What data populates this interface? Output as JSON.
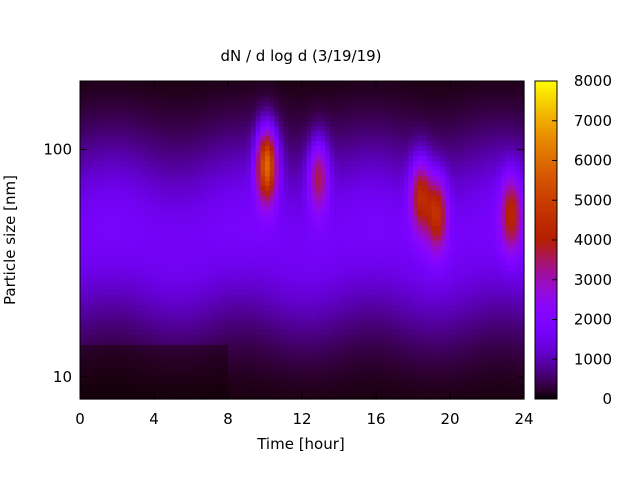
{
  "chart_data": {
    "type": "heatmap",
    "title": "dN / d log d (3/19/19)",
    "xlabel": "Time [hour]",
    "ylabel": "Particle size [nm]",
    "xlim": [
      0,
      24
    ],
    "ylim": [
      8,
      200
    ],
    "y_scale": "log",
    "x_ticks": [
      0,
      4,
      8,
      12,
      16,
      20,
      24
    ],
    "y_ticks": [
      10,
      100
    ],
    "colorbar": {
      "range": [
        0,
        8000
      ],
      "ticks": [
        0,
        1000,
        2000,
        3000,
        4000,
        5000,
        6000,
        7000,
        8000
      ],
      "colormap": "gnuplot-rgbformulae-7-5-15"
    },
    "background_level": 2000,
    "events": [
      {
        "time_hour": 10.1,
        "size_nm": 85,
        "peak": 6000
      },
      {
        "time_hour": 12.9,
        "size_nm": 75,
        "peak": 3600
      },
      {
        "time_hour": 18.4,
        "size_nm": 62,
        "peak": 4300
      },
      {
        "time_hour": 19.3,
        "size_nm": 52,
        "peak": 4500
      },
      {
        "time_hour": 23.3,
        "size_nm": 52,
        "peak": 4300
      }
    ]
  }
}
